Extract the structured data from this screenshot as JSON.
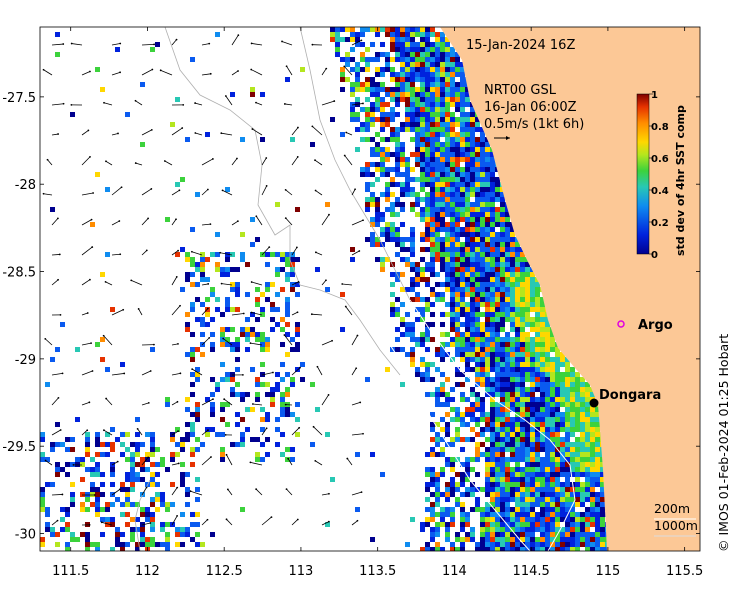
{
  "header": {
    "map_time": "15-Jan-2024 16Z",
    "current_source": "NRT00 GSL",
    "current_time": "16-Jan 06:00Z",
    "current_scale": "0.5m/s (1kt 6h)"
  },
  "axes": {
    "x_ticks": [
      "111.5",
      "112",
      "112.5",
      "113",
      "113.5",
      "114",
      "114.5",
      "115",
      "115.5"
    ],
    "y_ticks": [
      "-27.5",
      "-28",
      "-28.5",
      "-29",
      "-29.5",
      "-30"
    ],
    "lon_range": [
      111.3,
      115.6
    ],
    "lat_range": [
      -30.1,
      -27.1
    ]
  },
  "colorbar": {
    "label": "std dev of 4hr SST comp",
    "ticks": [
      "1",
      "0.8",
      "0.6",
      "0.4",
      "0.2",
      "0"
    ],
    "range": [
      0,
      1
    ]
  },
  "places": [
    {
      "name": "Argo",
      "lon": 115.07,
      "lat": -28.85,
      "marker": "magenta-circle"
    },
    {
      "name": "Dongara",
      "lon": 114.93,
      "lat": -29.25,
      "marker": "black-dot"
    }
  ],
  "bathymetry": {
    "labels": [
      "200m",
      "1000m"
    ]
  },
  "credit": "© IMOS 01-Feb-2024 01:25 Hobart",
  "colors": {
    "land": "#fcc896",
    "high": "#c62d0f",
    "mid": "#3cc83c",
    "low": "#1e3cc8"
  }
}
